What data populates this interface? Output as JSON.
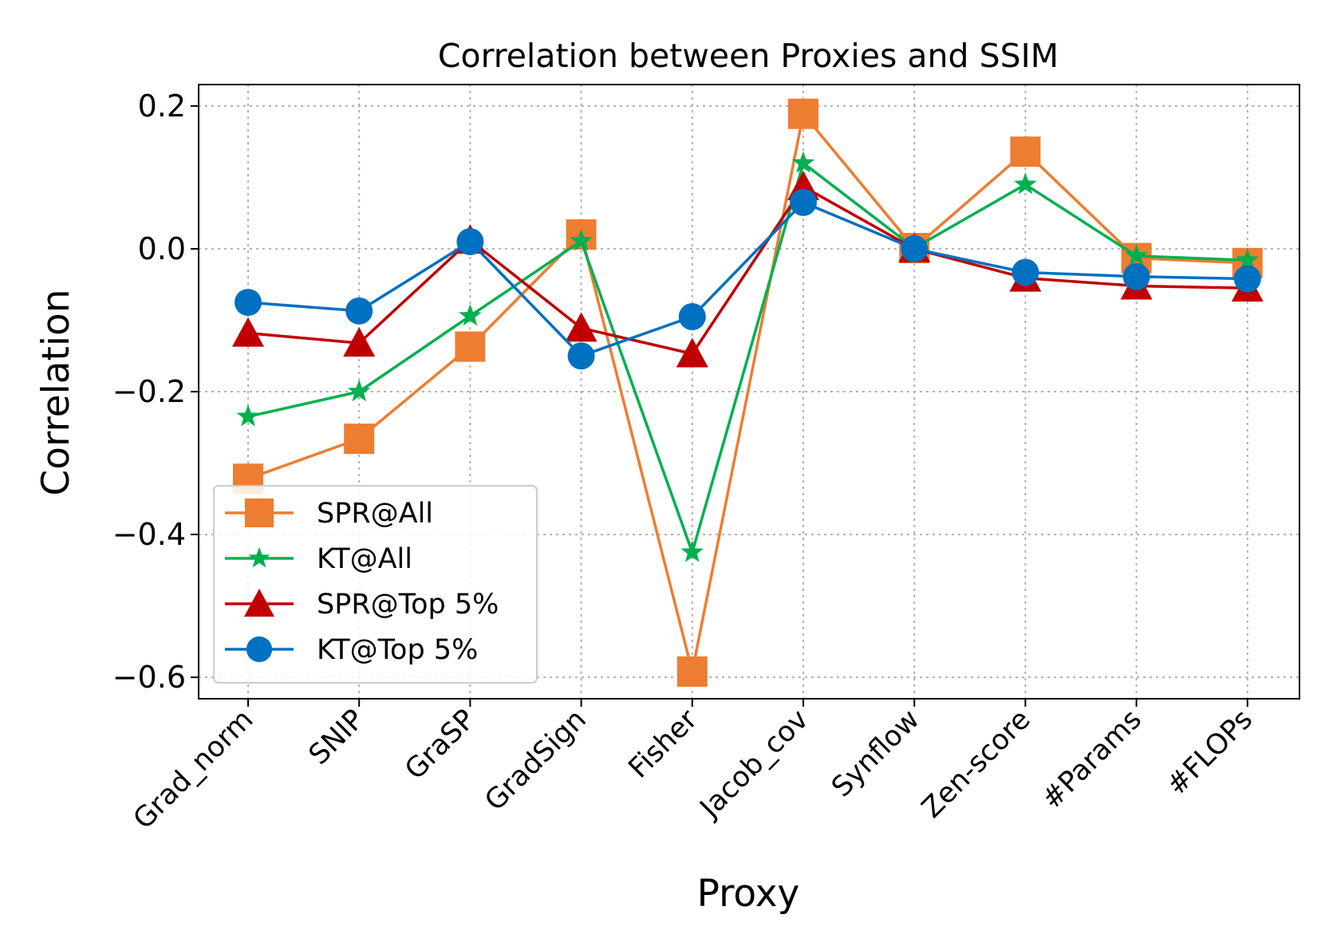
{
  "chart_data": {
    "type": "line",
    "title": "Correlation between Proxies and SSIM",
    "xlabel": "Proxy",
    "ylabel": "Correlation",
    "categories": [
      "Grad_norm",
      "SNIP",
      "GraSP",
      "GradSign",
      "Fisher",
      "Jacob_cov",
      "Synflow",
      "Zen-score",
      "#Params",
      "#FLOPs"
    ],
    "ylim": [
      -0.63,
      0.23
    ],
    "yticks": [
      0.2,
      0.0,
      -0.2,
      -0.4,
      -0.6
    ],
    "ytick_labels": [
      "0.2",
      "0.0",
      "−0.2",
      "−0.4",
      "−0.6"
    ],
    "grid": true,
    "legend_position": "lower-left",
    "series": [
      {
        "name": "SPR@All",
        "color": "#ed7d31",
        "marker": "square",
        "values": [
          -0.322,
          -0.266,
          -0.137,
          0.02,
          -0.592,
          0.189,
          0.001,
          0.136,
          -0.013,
          -0.02
        ]
      },
      {
        "name": "KT@All",
        "color": "#00b050",
        "marker": "star",
        "values": [
          -0.235,
          -0.2,
          -0.094,
          0.011,
          -0.425,
          0.12,
          0.001,
          0.09,
          -0.01,
          -0.016
        ]
      },
      {
        "name": "SPR@Top 5%",
        "color": "#c00000",
        "marker": "triangle",
        "values": [
          -0.118,
          -0.132,
          0.012,
          -0.111,
          -0.147,
          0.087,
          0.0,
          -0.041,
          -0.052,
          -0.055
        ]
      },
      {
        "name": "KT@Top 5%",
        "color": "#0070c0",
        "marker": "circle",
        "values": [
          -0.075,
          -0.087,
          0.01,
          -0.15,
          -0.095,
          0.065,
          0.0,
          -0.033,
          -0.039,
          -0.042
        ]
      }
    ]
  }
}
